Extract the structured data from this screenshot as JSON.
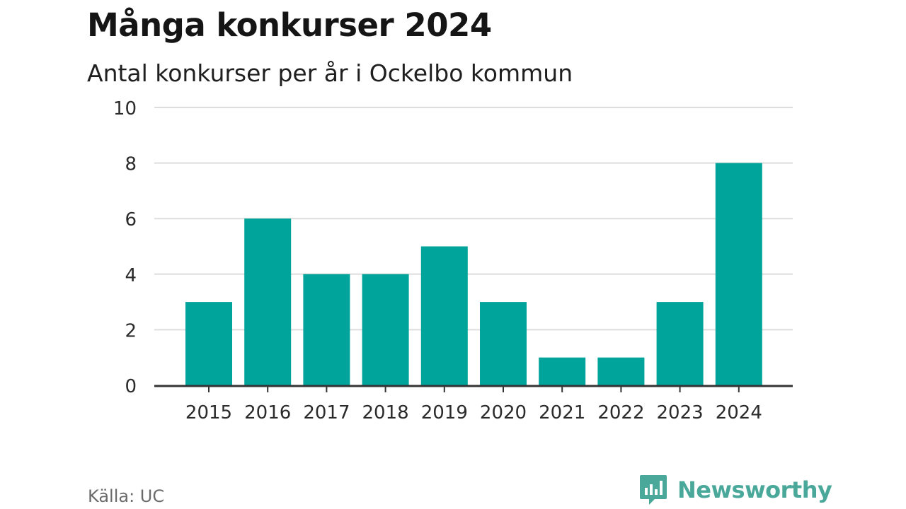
{
  "header": {
    "title": "Många konkurser 2024",
    "subtitle": "Antal konkurser per år i Ockelbo kommun"
  },
  "footer": {
    "source": "Källa: UC",
    "brand": "Newsworthy",
    "brand_icon": "newsworthy-logo-icon"
  },
  "colors": {
    "bar": "#00a49a",
    "grid": "#dddddd",
    "axis": "#333333",
    "brand": "#4aa89a"
  },
  "chart_data": {
    "type": "bar",
    "categories": [
      "2015",
      "2016",
      "2017",
      "2018",
      "2019",
      "2020",
      "2021",
      "2022",
      "2023",
      "2024"
    ],
    "values": [
      3,
      6,
      4,
      4,
      5,
      3,
      1,
      1,
      3,
      8
    ],
    "title": "Många konkurser 2024",
    "subtitle": "Antal konkurser per år i Ockelbo kommun",
    "xlabel": "",
    "ylabel": "",
    "ylim": [
      0,
      10
    ],
    "yticks": [
      0,
      2,
      4,
      6,
      8,
      10
    ],
    "grid": true,
    "legend": "none"
  }
}
